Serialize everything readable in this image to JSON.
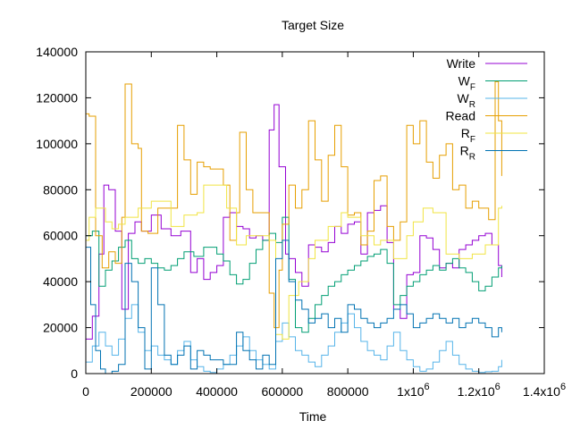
{
  "chart_data": {
    "type": "line",
    "title": "Target Size",
    "xlabel": "Time",
    "ylabel": "",
    "xlim": [
      0,
      1400000
    ],
    "ylim": [
      0,
      140000
    ],
    "grid": false,
    "legend_position": "top-right",
    "x_ticks": [
      {
        "value": 0,
        "label": "0"
      },
      {
        "value": 200000,
        "label": "200000"
      },
      {
        "value": 400000,
        "label": "400000"
      },
      {
        "value": 600000,
        "label": "600000"
      },
      {
        "value": 800000,
        "label": "800000"
      },
      {
        "value": 1000000,
        "label": "1x10",
        "exp": "6"
      },
      {
        "value": 1200000,
        "label": "1.2x10",
        "exp": "6"
      },
      {
        "value": 1400000,
        "label": "1.4x10",
        "exp": "6"
      }
    ],
    "y_ticks": [
      {
        "value": 0,
        "label": "0"
      },
      {
        "value": 20000,
        "label": "20000"
      },
      {
        "value": 40000,
        "label": "40000"
      },
      {
        "value": 60000,
        "label": "60000"
      },
      {
        "value": 80000,
        "label": "80000"
      },
      {
        "value": 100000,
        "label": "100000"
      },
      {
        "value": 120000,
        "label": "120000"
      },
      {
        "value": 140000,
        "label": "140000"
      }
    ],
    "series": [
      {
        "name": "Write",
        "label": "Write",
        "sub": "",
        "color": "#9400d3",
        "x": [
          0,
          20000,
          40000,
          55000,
          70000,
          90000,
          110000,
          130000,
          150000,
          170000,
          200000,
          230000,
          260000,
          290000,
          320000,
          340000,
          360000,
          380000,
          400000,
          420000,
          440000,
          460000,
          480000,
          500000,
          520000,
          540000,
          560000,
          575000,
          590000,
          610000,
          620000,
          640000,
          660000,
          680000,
          700000,
          720000,
          740000,
          760000,
          780000,
          800000,
          820000,
          840000,
          860000,
          880000,
          900000,
          920000,
          940000,
          960000,
          980000,
          1000000,
          1020000,
          1040000,
          1060000,
          1080000,
          1100000,
          1120000,
          1140000,
          1160000,
          1180000,
          1200000,
          1220000,
          1240000,
          1260000,
          1270000
        ],
        "values": [
          15000,
          25000,
          52000,
          82000,
          80000,
          62000,
          28000,
          61000,
          66000,
          62000,
          69000,
          63000,
          60000,
          62000,
          44000,
          50000,
          41000,
          44000,
          47000,
          68000,
          70000,
          64000,
          63000,
          59000,
          60000,
          58000,
          106000,
          117000,
          90000,
          52000,
          50000,
          44000,
          38000,
          56000,
          55000,
          53000,
          57000,
          64000,
          61000,
          65000,
          66000,
          52000,
          70000,
          71000,
          73000,
          57000,
          28000,
          24000,
          43000,
          44000,
          60000,
          59000,
          54000,
          46000,
          48000,
          46000,
          54000,
          56000,
          58000,
          60000,
          61000,
          56000,
          47000,
          42000
        ]
      },
      {
        "name": "W_F",
        "label": "W",
        "sub": "F",
        "color": "#009e73",
        "x": [
          0,
          20000,
          40000,
          60000,
          80000,
          100000,
          120000,
          140000,
          160000,
          180000,
          200000,
          220000,
          240000,
          260000,
          280000,
          300000,
          330000,
          360000,
          400000,
          420000,
          440000,
          460000,
          480000,
          500000,
          520000,
          540000,
          560000,
          580000,
          600000,
          620000,
          640000,
          660000,
          680000,
          700000,
          720000,
          740000,
          760000,
          780000,
          800000,
          820000,
          840000,
          860000,
          880000,
          900000,
          920000,
          940000,
          960000,
          980000,
          1000000,
          1020000,
          1040000,
          1060000,
          1080000,
          1100000,
          1120000,
          1140000,
          1160000,
          1180000,
          1200000,
          1220000,
          1240000,
          1260000,
          1270000
        ],
        "values": [
          60000,
          62000,
          38000,
          45000,
          49000,
          55000,
          58000,
          50000,
          48000,
          50000,
          48000,
          46000,
          45000,
          47000,
          50000,
          53000,
          51000,
          55000,
          52000,
          49000,
          43000,
          39000,
          41000,
          48000,
          54000,
          58000,
          61000,
          57000,
          68000,
          41000,
          20000,
          18000,
          24000,
          30000,
          34000,
          38000,
          40000,
          43000,
          45000,
          47000,
          49000,
          51000,
          52000,
          54000,
          48000,
          30000,
          34000,
          38000,
          40000,
          43000,
          45000,
          47000,
          45000,
          48000,
          50000,
          46000,
          44000,
          40000,
          36000,
          38000,
          42000,
          46000,
          47000
        ]
      },
      {
        "name": "W_R",
        "label": "W",
        "sub": "R",
        "color": "#56b4e9",
        "x": [
          0,
          20000,
          40000,
          60000,
          80000,
          100000,
          120000,
          140000,
          160000,
          180000,
          200000,
          220000,
          240000,
          260000,
          280000,
          300000,
          320000,
          340000,
          360000,
          380000,
          400000,
          420000,
          440000,
          460000,
          480000,
          500000,
          520000,
          540000,
          560000,
          580000,
          600000,
          620000,
          640000,
          660000,
          680000,
          700000,
          720000,
          740000,
          760000,
          780000,
          800000,
          820000,
          840000,
          860000,
          880000,
          900000,
          920000,
          940000,
          960000,
          980000,
          1000000,
          1020000,
          1040000,
          1060000,
          1080000,
          1100000,
          1120000,
          1140000,
          1160000,
          1180000,
          1200000,
          1220000,
          1240000,
          1260000,
          1270000
        ],
        "values": [
          5000,
          12000,
          18000,
          12000,
          8000,
          15000,
          24000,
          30000,
          18000,
          10000,
          12000,
          8000,
          6000,
          4000,
          10000,
          14000,
          6000,
          3000,
          1000,
          500,
          2000,
          4000,
          8000,
          12000,
          16000,
          10000,
          6000,
          4000,
          2000,
          14000,
          22000,
          16000,
          10000,
          8000,
          5000,
          3000,
          8000,
          12000,
          18000,
          22000,
          26000,
          20000,
          14000,
          10000,
          8000,
          6000,
          12000,
          18000,
          10000,
          6000,
          3000,
          1000,
          2000,
          5000,
          10000,
          14000,
          8000,
          4000,
          2000,
          1000,
          500,
          800,
          1000,
          3000,
          6000
        ]
      },
      {
        "name": "Read",
        "label": "Read",
        "sub": "",
        "color": "#e69f00",
        "x": [
          0,
          10000,
          30000,
          50000,
          70000,
          90000,
          110000,
          120000,
          140000,
          160000,
          170000,
          190000,
          220000,
          250000,
          280000,
          300000,
          320000,
          340000,
          360000,
          380000,
          400000,
          420000,
          440000,
          460000,
          470000,
          490000,
          510000,
          540000,
          560000,
          575000,
          590000,
          600000,
          620000,
          640000,
          660000,
          680000,
          700000,
          720000,
          740000,
          760000,
          780000,
          800000,
          820000,
          840000,
          860000,
          880000,
          900000,
          920000,
          940000,
          960000,
          980000,
          1000000,
          1020000,
          1040000,
          1060000,
          1080000,
          1100000,
          1120000,
          1140000,
          1160000,
          1180000,
          1200000,
          1230000,
          1250000,
          1260000,
          1270000
        ],
        "values": [
          113000,
          112000,
          60000,
          46000,
          53000,
          48000,
          68000,
          126000,
          100000,
          98000,
          62000,
          61000,
          72000,
          72000,
          108000,
          93000,
          78000,
          92000,
          90000,
          89000,
          89000,
          82000,
          58000,
          70000,
          105000,
          80000,
          70000,
          70000,
          35000,
          20000,
          45000,
          65000,
          82000,
          72000,
          80000,
          110000,
          93000,
          75000,
          95000,
          108000,
          90000,
          69000,
          70000,
          56000,
          62000,
          84000,
          86000,
          64000,
          58000,
          66000,
          108000,
          100000,
          110000,
          92000,
          85000,
          95000,
          100000,
          80000,
          82000,
          72000,
          75000,
          72000,
          67000,
          127000,
          110000,
          86000
        ]
      },
      {
        "name": "R_F",
        "label": "R",
        "sub": "F",
        "color": "#f0e442",
        "x": [
          0,
          10000,
          30000,
          60000,
          80000,
          100000,
          120000,
          160000,
          200000,
          260000,
          300000,
          340000,
          360000,
          380000,
          400000,
          430000,
          460000,
          490000,
          520000,
          560000,
          580000,
          600000,
          620000,
          650000,
          680000,
          700000,
          740000,
          780000,
          800000,
          840000,
          880000,
          900000,
          940000,
          980000,
          1000000,
          1030000,
          1060000,
          1100000,
          1140000,
          1180000,
          1220000,
          1260000,
          1270000
        ],
        "values": [
          58000,
          68000,
          72000,
          66000,
          63000,
          65000,
          68000,
          72000,
          75000,
          64000,
          69000,
          70000,
          82000,
          82000,
          82000,
          72000,
          56000,
          60000,
          60000,
          58000,
          17000,
          15000,
          34000,
          40000,
          50000,
          58000,
          64000,
          70000,
          68000,
          60000,
          56000,
          58000,
          50000,
          60000,
          66000,
          72000,
          70000,
          52000,
          50000,
          52000,
          56000,
          72000,
          73000
        ]
      },
      {
        "name": "R_R",
        "label": "R",
        "sub": "R",
        "color": "#0072b2",
        "x": [
          0,
          15000,
          30000,
          45000,
          60000,
          80000,
          100000,
          120000,
          140000,
          160000,
          180000,
          200000,
          220000,
          240000,
          260000,
          280000,
          300000,
          320000,
          340000,
          360000,
          380000,
          400000,
          420000,
          440000,
          460000,
          480000,
          500000,
          520000,
          540000,
          560000,
          580000,
          600000,
          620000,
          640000,
          660000,
          680000,
          700000,
          720000,
          740000,
          760000,
          780000,
          800000,
          820000,
          840000,
          860000,
          880000,
          900000,
          920000,
          940000,
          960000,
          980000,
          1000000,
          1020000,
          1040000,
          1060000,
          1080000,
          1100000,
          1120000,
          1140000,
          1160000,
          1180000,
          1200000,
          1220000,
          1240000,
          1260000,
          1270000
        ],
        "values": [
          55000,
          30000,
          10000,
          2000,
          0,
          1000,
          4000,
          48000,
          40000,
          20000,
          2000,
          46000,
          30000,
          8000,
          4000,
          8000,
          12000,
          2000,
          10000,
          8000,
          6000,
          6000,
          4000,
          4000,
          18000,
          10000,
          6000,
          2000,
          8000,
          4000,
          50000,
          58000,
          40000,
          32000,
          28000,
          22000,
          24000,
          26000,
          20000,
          24000,
          18000,
          30000,
          28000,
          24000,
          22000,
          20000,
          22000,
          24000,
          28000,
          30000,
          26000,
          20000,
          22000,
          24000,
          26000,
          24000,
          22000,
          24000,
          20000,
          22000,
          24000,
          22000,
          20000,
          16000,
          20000,
          18000
        ]
      }
    ]
  }
}
